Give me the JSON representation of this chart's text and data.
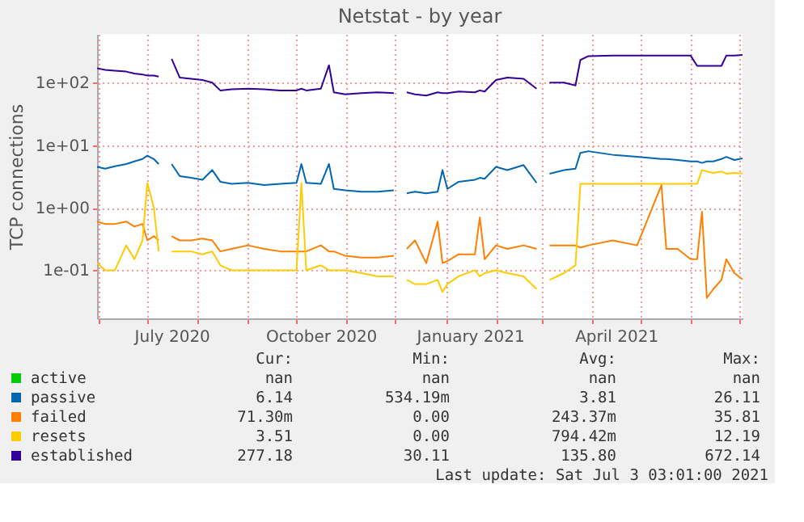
{
  "chart_data": {
    "type": "line",
    "title": "Netstat - by year",
    "ylabel": "TCP connections",
    "log": true,
    "grid": true,
    "legend": "bottom",
    "xlim": [
      "2020-05-31",
      "2021-07-03"
    ],
    "xticks": [
      {
        "value": "2020-06-01",
        "label": null
      },
      {
        "value": "2020-07-01",
        "label": null
      },
      {
        "value": "2020-08-01",
        "label": null
      },
      {
        "value": "2020-09-01",
        "label": null
      },
      {
        "value": "2020-10-01",
        "label": null
      },
      {
        "value": "2020-11-01",
        "label": null
      },
      {
        "value": "2020-12-01",
        "label": null
      },
      {
        "value": "2021-01-01",
        "label": null
      },
      {
        "value": "2021-02-01",
        "label": null
      },
      {
        "value": "2021-03-01",
        "label": null
      },
      {
        "value": "2021-04-01",
        "label": null
      },
      {
        "value": "2021-05-01",
        "label": null
      },
      {
        "value": "2021-06-01",
        "label": null
      },
      {
        "value": "2021-07-01",
        "label": null
      },
      {
        "value": "2020-07-16",
        "label": "July 2020"
      },
      {
        "value": "2020-10-16",
        "label": "October 2020"
      },
      {
        "value": "2021-01-16",
        "label": "January 2021"
      },
      {
        "value": "2021-04-16",
        "label": "April 2021"
      }
    ],
    "ylim": [
      0.017,
      600
    ],
    "yticks": [
      {
        "value": 0.1,
        "label": "1e-01"
      },
      {
        "value": 1,
        "label": "1e+00"
      },
      {
        "value": 10,
        "label": "1e+01"
      },
      {
        "value": 100,
        "label": "1e+02"
      }
    ],
    "x": [
      "2020-05-31",
      "2020-06-05",
      "2020-06-11",
      "2020-06-18",
      "2020-06-23",
      "2020-06-28",
      "2020-07-01",
      "2020-07-05",
      "2020-07-08",
      "2020-07-11",
      "2020-07-16",
      "2020-07-21",
      "2020-07-28",
      "2020-08-04",
      "2020-08-10",
      "2020-08-15",
      "2020-08-22",
      "2020-09-01",
      "2020-09-11",
      "2020-09-21",
      "2020-10-01",
      "2020-10-04",
      "2020-10-07",
      "2020-10-16",
      "2020-10-21",
      "2020-10-24",
      "2020-10-31",
      "2020-11-10",
      "2020-11-20",
      "2020-11-30",
      "2020-12-05",
      "2020-12-08",
      "2020-12-13",
      "2020-12-20",
      "2020-12-27",
      "2020-12-30",
      "2021-01-02",
      "2021-01-09",
      "2021-01-19",
      "2021-01-22",
      "2021-01-25",
      "2021-02-01",
      "2021-02-08",
      "2021-02-18",
      "2021-02-26",
      "2021-03-02",
      "2021-03-06",
      "2021-03-15",
      "2021-03-22",
      "2021-03-25",
      "2021-03-30",
      "2021-04-14",
      "2021-04-29",
      "2021-05-14",
      "2021-05-17",
      "2021-05-24",
      "2021-06-01",
      "2021-06-05",
      "2021-06-08",
      "2021-06-11",
      "2021-06-15",
      "2021-06-20",
      "2021-06-23",
      "2021-06-28",
      "2021-07-03"
    ],
    "series": [
      {
        "name": "active",
        "color": "#00cc00",
        "values": [
          null,
          null,
          null,
          null,
          null,
          null,
          null,
          null,
          null,
          null,
          null,
          null,
          null,
          null,
          null,
          null,
          null,
          null,
          null,
          null,
          null,
          null,
          null,
          null,
          null,
          null,
          null,
          null,
          null,
          null,
          null,
          null,
          null,
          null,
          null,
          null,
          null,
          null,
          null,
          null,
          null,
          null,
          null,
          null,
          null,
          null,
          null,
          null,
          null,
          null,
          null,
          null,
          null,
          null,
          null,
          null,
          null,
          null,
          null,
          null,
          null,
          null,
          null,
          null,
          null
        ]
      },
      {
        "name": "passive",
        "color": "#0066b3",
        "values": [
          4.5,
          4.2,
          4.6,
          5,
          5.5,
          6,
          6.8,
          6,
          5,
          null,
          5,
          3.2,
          3,
          2.8,
          4,
          2.6,
          2.4,
          2.5,
          2.3,
          2.4,
          2.5,
          5,
          2.5,
          2.4,
          5,
          2,
          1.9,
          1.8,
          1.8,
          1.9,
          null,
          1.7,
          1.8,
          1.7,
          1.8,
          4,
          2,
          2.6,
          2.8,
          3,
          2.9,
          4.5,
          4,
          4.8,
          2.5,
          null,
          3.5,
          4,
          4.2,
          7.5,
          8,
          7,
          6.5,
          6,
          6,
          5.8,
          5.5,
          5.5,
          5.2,
          5.5,
          5.5,
          6,
          6.5,
          5.8,
          6.14
        ]
      },
      {
        "name": "failed",
        "color": "#ff8000",
        "values": [
          0.6,
          0.55,
          0.55,
          0.6,
          0.5,
          0.55,
          0.3,
          0.35,
          0.3,
          null,
          0.35,
          0.3,
          0.3,
          0.32,
          0.3,
          0.2,
          0.22,
          0.25,
          0.22,
          0.2,
          0.2,
          0.2,
          0.2,
          0.25,
          0.2,
          0.2,
          0.17,
          0.16,
          0.16,
          0.17,
          null,
          0.22,
          0.3,
          0.13,
          0.6,
          0.13,
          0.14,
          0.18,
          0.18,
          0.7,
          0.15,
          0.25,
          0.22,
          0.25,
          0.22,
          null,
          0.25,
          0.25,
          0.25,
          0.23,
          0.25,
          0.3,
          0.25,
          2.3,
          0.22,
          0.22,
          0.15,
          0.15,
          0.86,
          0.036,
          0.05,
          0.07,
          0.15,
          0.09,
          0.0713
        ]
      },
      {
        "name": "resets",
        "color": "#ffcc00",
        "values": [
          0.13,
          0.1,
          0.1,
          0.25,
          0.15,
          0.3,
          2.5,
          1,
          0.2,
          null,
          0.2,
          0.2,
          0.2,
          0.18,
          0.2,
          0.12,
          0.1,
          0.1,
          0.1,
          0.1,
          0.1,
          2.5,
          0.1,
          0.12,
          0.1,
          0.1,
          0.1,
          0.09,
          0.08,
          0.08,
          null,
          0.07,
          0.06,
          0.06,
          0.07,
          0.045,
          0.06,
          0.08,
          0.1,
          0.08,
          0.09,
          0.1,
          0.09,
          0.08,
          0.05,
          null,
          0.07,
          0.09,
          0.12,
          2.4,
          2.4,
          2.4,
          2.4,
          2.4,
          2.4,
          2.4,
          2.4,
          2.4,
          4,
          3.8,
          3.6,
          3.8,
          3.5,
          3.6,
          3.51
        ]
      },
      {
        "name": "established",
        "color": "#330099",
        "values": [
          170,
          160,
          155,
          150,
          140,
          135,
          130,
          130,
          125,
          null,
          240,
          120,
          115,
          110,
          100,
          75,
          78,
          80,
          78,
          75,
          75,
          80,
          75,
          80,
          190,
          70,
          65,
          68,
          70,
          68,
          null,
          70,
          65,
          62,
          70,
          68,
          68,
          72,
          70,
          75,
          72,
          110,
          120,
          115,
          80,
          null,
          100,
          100,
          90,
          230,
          265,
          270,
          270,
          270,
          270,
          270,
          270,
          185,
          185,
          185,
          185,
          185,
          270,
          270,
          277
        ]
      }
    ],
    "annotations": [
      "Cur:",
      "Min:",
      "Avg:",
      "Max:",
      "nan",
      "nan",
      "nan",
      "nan",
      "6.14",
      "534.19m",
      "3.81",
      "26.11",
      "71.30m",
      "0.00",
      "243.37m",
      "35.81",
      "3.51",
      "0.00",
      "794.42m",
      "12.19",
      "277.18",
      "30.11",
      "135.80",
      "672.14",
      "Last update: Sat Jul  3 03:01:00 2021"
    ]
  }
}
